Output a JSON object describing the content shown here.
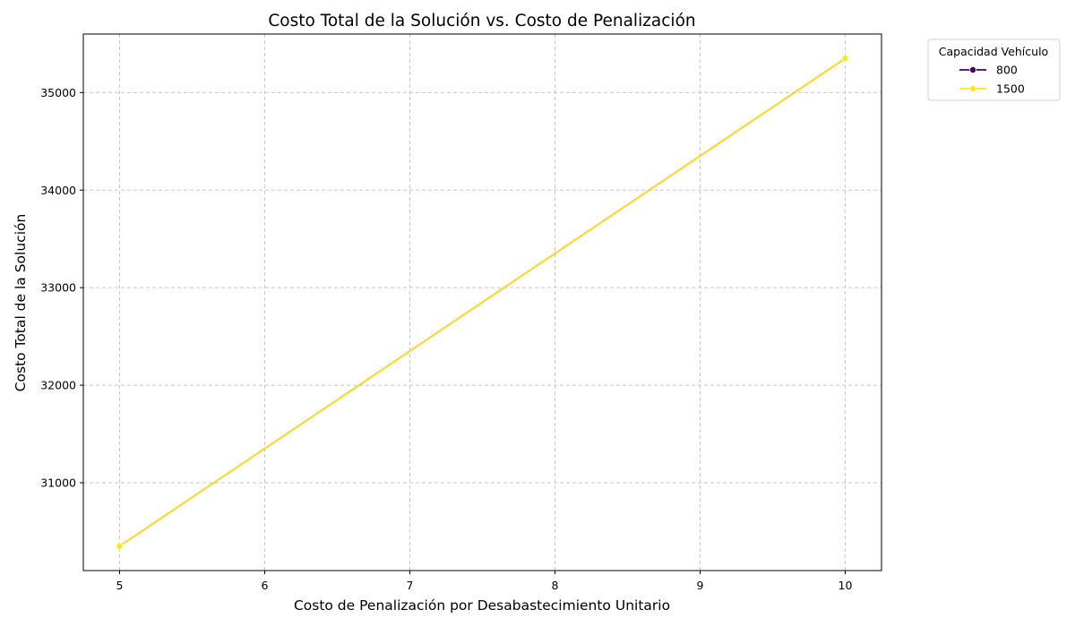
{
  "chart_data": {
    "type": "line",
    "title": "Costo Total de la Solución vs. Costo de Penalización",
    "xlabel": "Costo de Penalización por Desabastecimiento Unitario",
    "ylabel": "Costo Total de la Solución",
    "xlim": [
      4.75,
      10.25
    ],
    "ylim": [
      30100,
      35600
    ],
    "x_ticks": [
      5,
      6,
      7,
      8,
      9,
      10
    ],
    "y_ticks": [
      31000,
      32000,
      33000,
      34000,
      35000
    ],
    "grid": true,
    "legend": {
      "title": "Capacidad Vehículo",
      "placement": "outside-top-right"
    },
    "series": [
      {
        "name": "800",
        "color": "#440154",
        "marker": "circle",
        "x": [
          5,
          10
        ],
        "y": [
          30350,
          35350
        ]
      },
      {
        "name": "1500",
        "color": "#fde725",
        "marker": "circle",
        "x": [
          5,
          10
        ],
        "y": [
          30350,
          35350
        ]
      }
    ]
  }
}
